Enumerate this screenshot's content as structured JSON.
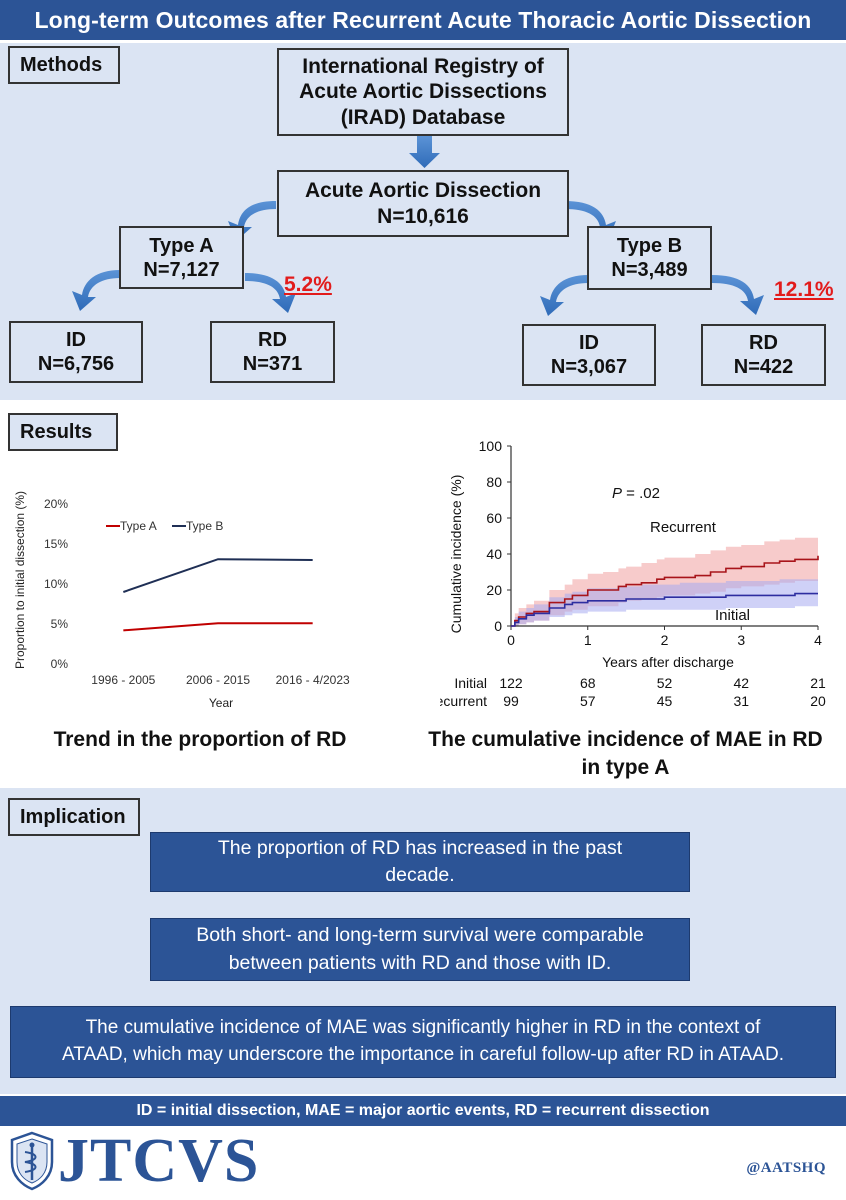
{
  "title": "Long-term Outcomes after Recurrent Acute Thoracic Aortic Dissection",
  "methods": {
    "label": "Methods",
    "registry": [
      "International Registry of",
      "Acute Aortic Dissections",
      "(IRAD) Database"
    ],
    "total": {
      "title": "Acute Aortic Dissection",
      "n": "N=10,616"
    },
    "type_a": {
      "title": "Type A",
      "n": "N=7,127",
      "pct": "5.2%",
      "id": {
        "title": "ID",
        "n": "N=6,756"
      },
      "rd": {
        "title": "RD",
        "n": "N=371"
      }
    },
    "type_b": {
      "title": "Type B",
      "n": "N=3,489",
      "pct": "12.1%",
      "id": {
        "title": "ID",
        "n": "N=3,067"
      },
      "rd": {
        "title": "RD",
        "n": "N=422"
      }
    }
  },
  "results": {
    "label": "Results",
    "left_caption": "Trend in the proportion of RD",
    "right_caption": [
      "The cumulative incidence of MAE in RD",
      "in type A"
    ]
  },
  "chart_data": [
    {
      "type": "line",
      "title": "Trend in the proportion of RD",
      "xlabel": "Year",
      "ylabel": "Proportion to initial dissection (%)",
      "categories": [
        "1996 - 2005",
        "2006 - 2015",
        "2016 - 4/2023"
      ],
      "yticks": [
        "0%",
        "5%",
        "10%",
        "15%",
        "20%"
      ],
      "ylim": [
        0,
        20
      ],
      "series": [
        {
          "name": "Type A",
          "color": "#c00000",
          "values": [
            4.2,
            5.1,
            5.1
          ]
        },
        {
          "name": "Type B",
          "color": "#1f2f55",
          "values": [
            9.0,
            13.1,
            13.0
          ]
        }
      ]
    },
    {
      "type": "line",
      "title": "The cumulative incidence of MAE in RD in type A",
      "xlabel": "Years after discharge",
      "ylabel": "Cumulative incidence (%)",
      "xlim": [
        0,
        4
      ],
      "ylim": [
        0,
        100
      ],
      "xticks": [
        "0",
        "1",
        "2",
        "3",
        "4"
      ],
      "yticks": [
        "0",
        "20",
        "40",
        "60",
        "80",
        "100"
      ],
      "annotation_p_italic": "P",
      "annotation_p_rest": " = .02",
      "series": [
        {
          "name": "Recurrent",
          "color": "#a8141a",
          "band_color": "#f0a0a0",
          "x": [
            0,
            0.05,
            0.1,
            0.2,
            0.3,
            0.4,
            0.5,
            0.7,
            0.8,
            1.0,
            1.2,
            1.4,
            1.5,
            1.7,
            1.9,
            2.0,
            2.2,
            2.4,
            2.6,
            2.8,
            3.0,
            3.3,
            3.5,
            3.7,
            4.0
          ],
          "y": [
            0,
            3,
            5,
            7,
            8,
            8,
            13,
            15,
            17,
            20,
            20,
            22,
            23,
            24,
            26,
            27,
            27,
            28,
            30,
            32,
            33,
            35,
            36,
            37,
            39
          ],
          "lo": [
            0,
            0,
            1,
            2,
            3,
            3,
            6,
            8,
            9,
            11,
            11,
            13,
            14,
            15,
            16,
            17,
            17,
            18,
            19,
            21,
            22,
            23,
            24,
            25,
            27
          ],
          "hi": [
            0,
            7,
            10,
            12,
            14,
            14,
            20,
            23,
            26,
            29,
            30,
            32,
            33,
            35,
            37,
            38,
            38,
            40,
            42,
            44,
            45,
            47,
            48,
            49,
            49
          ]
        },
        {
          "name": "Initial",
          "color": "#2d2da0",
          "band_color": "#a8acf0",
          "x": [
            0,
            0.05,
            0.1,
            0.2,
            0.3,
            0.4,
            0.5,
            0.7,
            0.8,
            1.0,
            1.2,
            1.4,
            1.5,
            1.7,
            1.9,
            2.0,
            2.2,
            2.4,
            2.6,
            2.8,
            3.0,
            3.3,
            3.5,
            3.7,
            4.0
          ],
          "y": [
            0,
            2,
            4,
            6,
            7,
            7,
            10,
            12,
            13,
            14,
            14,
            14,
            15,
            15,
            15,
            16,
            16,
            16,
            16,
            17,
            17,
            17,
            17,
            18,
            18
          ],
          "lo": [
            0,
            0,
            1,
            2,
            3,
            3,
            5,
            6,
            7,
            8,
            8,
            8,
            9,
            9,
            9,
            9,
            9,
            9,
            9,
            10,
            10,
            10,
            10,
            11,
            11
          ],
          "hi": [
            0,
            5,
            8,
            10,
            12,
            12,
            16,
            18,
            19,
            21,
            21,
            22,
            22,
            23,
            23,
            23,
            24,
            24,
            24,
            25,
            25,
            25,
            26,
            26,
            27
          ]
        }
      ],
      "risk_table": {
        "rows": [
          {
            "label": "Initial",
            "values": [
              "122",
              "68",
              "52",
              "42",
              "21"
            ]
          },
          {
            "label": "Recurrent",
            "values": [
              "99",
              "57",
              "45",
              "31",
              "20"
            ]
          }
        ]
      }
    }
  ],
  "implication": {
    "label": "Implication",
    "points": [
      [
        "The proportion of RD has increased in the past",
        "decade."
      ],
      [
        "Both short- and long-term survival were comparable",
        "between patients with RD and those with ID."
      ],
      [
        "The cumulative incidence of MAE was significantly higher in RD in the context of",
        "ATAAD, which may underscore the importance in careful follow-up after RD in ATAAD."
      ]
    ]
  },
  "footer": "ID = initial dissection, MAE = major aortic events, RD = recurrent dissection",
  "brand": {
    "logo_text": "JTCVS",
    "handle": "@AATSHQ",
    "color": "#2c5496"
  }
}
